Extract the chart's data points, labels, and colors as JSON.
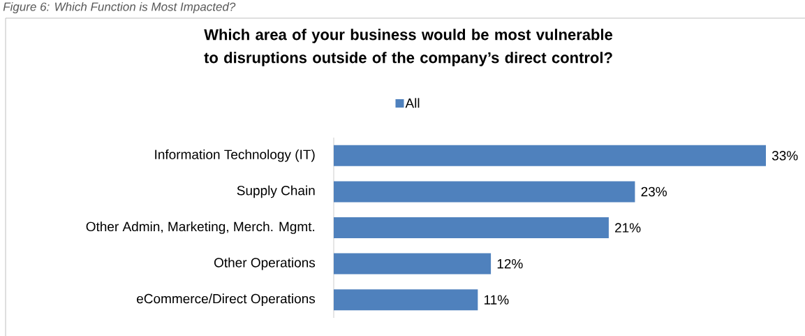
{
  "chart_data": {
    "type": "bar",
    "orientation": "horizontal",
    "title": "Which area of your business would be most vulnerable to disruptions outside of the company’s direct control?",
    "annotations": [
      "Figure 6: Which Function is Most Impacted?"
    ],
    "categories": [
      "Information Technology (IT)",
      "Supply Chain",
      "Other Admin, Marketing, Merch. Mgmt.",
      "Other Operations",
      "eCommerce/Direct Operations"
    ],
    "series": [
      {
        "name": "All",
        "color": "#4f81bd",
        "values": [
          33,
          23,
          21,
          12,
          11
        ],
        "value_labels": [
          "33%",
          "23%",
          "21%",
          "12%",
          "11%"
        ]
      }
    ],
    "legend": "top"
  }
}
